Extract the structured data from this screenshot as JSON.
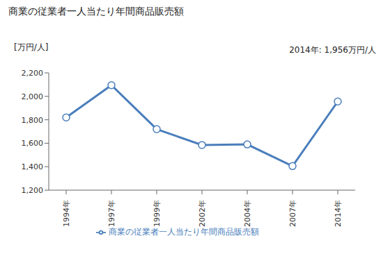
{
  "chart_data": {
    "type": "line",
    "title": "商業の従業者一人当たり年間商品販売額",
    "y_label": "[万円/人]",
    "annotation": "2014年: 1,956万円/人",
    "categories": [
      "1994年",
      "1997年",
      "1999年",
      "2002年",
      "2004年",
      "2007年",
      "2014年"
    ],
    "series": [
      {
        "name": "商業の従業者一人当たり年間商品販売額",
        "color": "#4a7ebb",
        "marker": "circle",
        "values": [
          1820,
          2095,
          1720,
          1585,
          1590,
          1405,
          1956
        ]
      }
    ],
    "ylim": [
      1200,
      2200
    ],
    "yticks": [
      {
        "value": 1200,
        "label": "1,200"
      },
      {
        "value": 1400,
        "label": "1,400"
      },
      {
        "value": 1600,
        "label": "1,600"
      },
      {
        "value": 1800,
        "label": "1,800"
      },
      {
        "value": 2000,
        "label": "2,000"
      },
      {
        "value": 2200,
        "label": "2,200"
      }
    ],
    "grid": false,
    "legend": "bottom"
  }
}
